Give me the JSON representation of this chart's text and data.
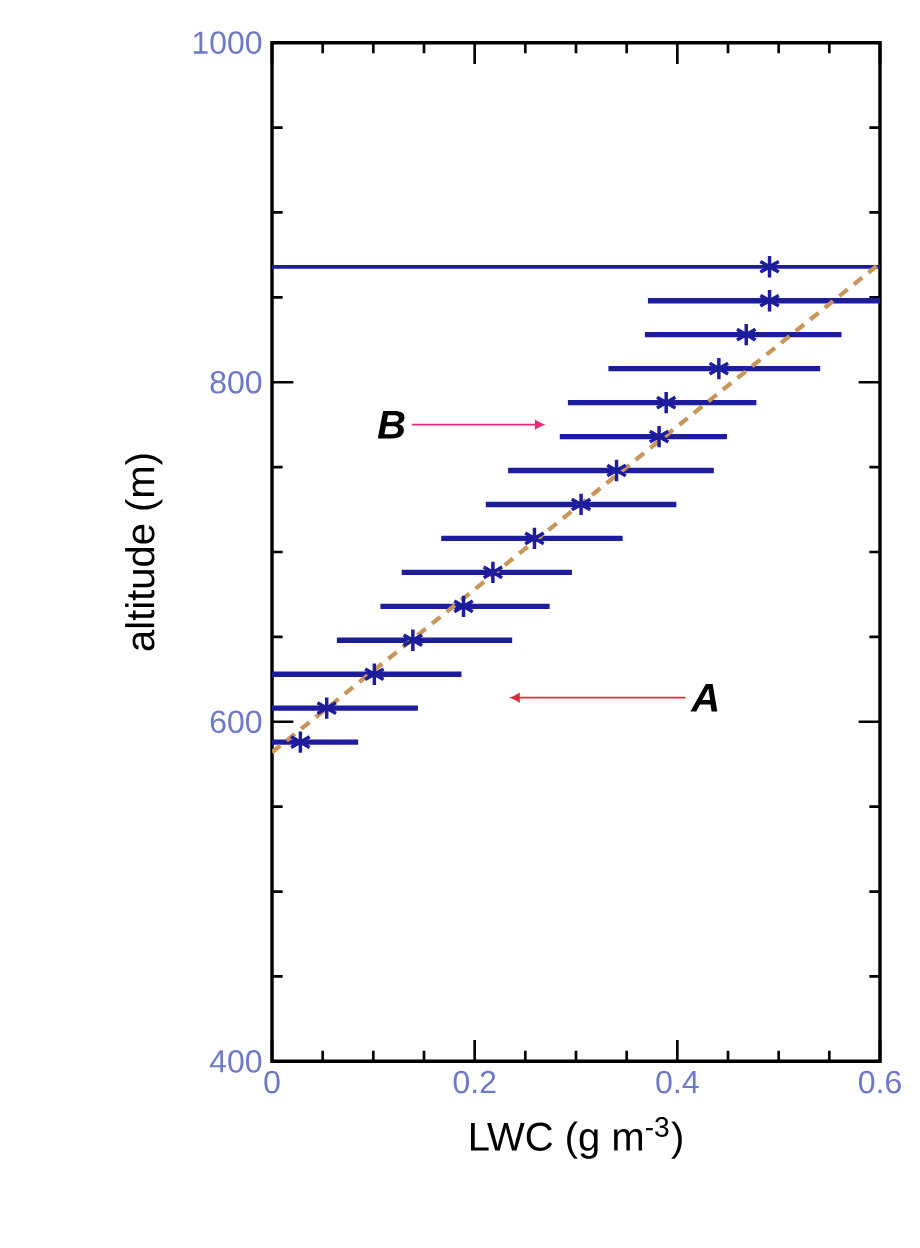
{
  "chart_data": {
    "type": "scatter",
    "xlabel": "LWC (g m$^{-3}$)",
    "ylabel": "altitude (m)",
    "xlim": [
      0,
      0.6
    ],
    "xticks": [
      0,
      0.2,
      0.4,
      0.6
    ],
    "ylim": [
      400,
      1000
    ],
    "yticks": [
      400,
      600,
      800,
      1000
    ],
    "marker": "cross",
    "grid": false,
    "series": [
      {
        "color": "#1c1c9c",
        "x": [
          0.491,
          0.491,
          0.468,
          0.441,
          0.389,
          0.382,
          0.34,
          0.305,
          0.259,
          0.218,
          0.189,
          0.139,
          0.101,
          0.054,
          0.028
        ],
        "values": [
          868,
          848,
          828,
          808,
          788,
          768,
          748,
          728,
          708,
          688,
          668,
          648,
          628,
          608,
          588
        ],
        "xerrors": [
          null,
          [
            0.371,
            0.6
          ],
          [
            0.368,
            0.562
          ],
          [
            0.332,
            0.541
          ],
          [
            0.292,
            0.478
          ],
          [
            0.284,
            0.449
          ],
          [
            0.233,
            0.436
          ],
          [
            0.211,
            0.399
          ],
          [
            0.167,
            0.346
          ],
          [
            0.128,
            0.296
          ],
          [
            0.107,
            0.274
          ],
          [
            0.064,
            0.237
          ],
          [
            0,
            0.187
          ],
          [
            0,
            0.144
          ],
          [
            0,
            0.085
          ]
        ]
      },
      {
        "type": "line",
        "color": "#c8955a",
        "line_style": "dashed",
        "marker": "none",
        "x": [
          0,
          0.6
        ],
        "values": [
          582,
          870
        ]
      }
    ],
    "ref_lines": [
      {
        "axis": "y",
        "value": 868,
        "color": "#1c1c9c"
      }
    ],
    "annotations": [
      "B",
      "A"
    ]
  }
}
